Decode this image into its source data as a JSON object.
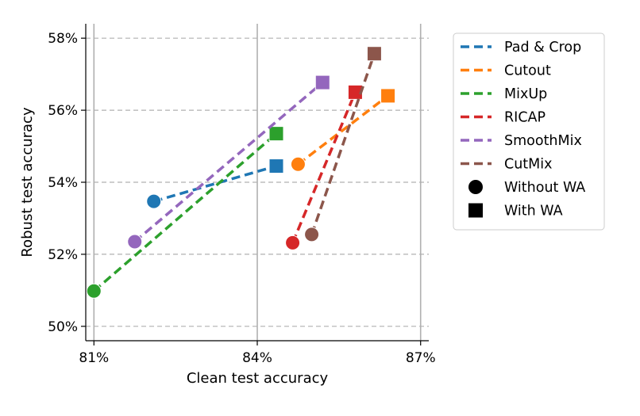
{
  "chart_data": {
    "type": "scatter",
    "xlabel": "Clean test accuracy",
    "ylabel": "Robust test accuracy",
    "xlim": [
      80.85,
      87.15
    ],
    "ylim": [
      49.6,
      58.4
    ],
    "x_ticks": [
      81,
      84,
      87
    ],
    "x_tick_labels": [
      "81%",
      "84%",
      "87%"
    ],
    "y_ticks": [
      50,
      52,
      54,
      56,
      58
    ],
    "y_tick_labels": [
      "50%",
      "52%",
      "54%",
      "56%",
      "58%"
    ],
    "grid": true,
    "legend_position": "outside-right",
    "series": [
      {
        "name": "Pad & Crop",
        "color": "#1f77b4",
        "without_wa": [
          82.1,
          53.47
        ],
        "with_wa": [
          84.35,
          54.45
        ]
      },
      {
        "name": "Cutout",
        "color": "#ff7f0e",
        "without_wa": [
          84.75,
          54.5
        ],
        "with_wa": [
          86.4,
          56.4
        ]
      },
      {
        "name": "MixUp",
        "color": "#2ca02c",
        "without_wa": [
          81.0,
          50.98
        ],
        "with_wa": [
          84.35,
          55.35
        ]
      },
      {
        "name": "RICAP",
        "color": "#d62728",
        "without_wa": [
          84.65,
          52.32
        ],
        "with_wa": [
          85.8,
          56.5
        ]
      },
      {
        "name": "SmoothMix",
        "color": "#9467bd",
        "without_wa": [
          81.75,
          52.35
        ],
        "with_wa": [
          85.2,
          56.77
        ]
      },
      {
        "name": "CutMix",
        "color": "#8c564b",
        "without_wa": [
          85.0,
          52.55
        ],
        "with_wa": [
          86.15,
          57.57
        ]
      }
    ],
    "marker_legend": [
      {
        "label": "Without WA",
        "marker": "circle"
      },
      {
        "label": "With WA",
        "marker": "square"
      }
    ]
  }
}
